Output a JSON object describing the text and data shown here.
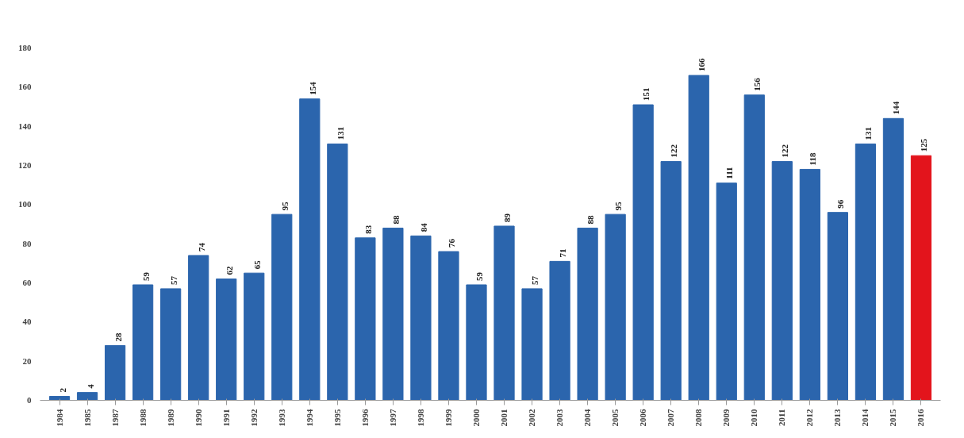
{
  "chart_data": {
    "type": "bar",
    "categories": [
      "1984",
      "1985",
      "1987",
      "1988",
      "1989",
      "1990",
      "1991",
      "1992",
      "1993",
      "1994",
      "1995",
      "1996",
      "1997",
      "1998",
      "1999",
      "2000",
      "2001",
      "2002",
      "2003",
      "2004",
      "2005",
      "2006",
      "2007",
      "2008",
      "2009",
      "2010",
      "2011",
      "2012",
      "2013",
      "2014",
      "2015",
      "2016"
    ],
    "values": [
      2,
      4,
      28,
      59,
      57,
      74,
      62,
      65,
      95,
      154,
      131,
      83,
      88,
      84,
      76,
      59,
      89,
      57,
      71,
      88,
      95,
      151,
      122,
      166,
      111,
      156,
      122,
      118,
      96,
      131,
      144,
      125
    ],
    "colors": [
      "#2b65ad",
      "#2b65ad",
      "#2b65ad",
      "#2b65ad",
      "#2b65ad",
      "#2b65ad",
      "#2b65ad",
      "#2b65ad",
      "#2b65ad",
      "#2b65ad",
      "#2b65ad",
      "#2b65ad",
      "#2b65ad",
      "#2b65ad",
      "#2b65ad",
      "#2b65ad",
      "#2b65ad",
      "#2b65ad",
      "#2b65ad",
      "#2b65ad",
      "#2b65ad",
      "#2b65ad",
      "#2b65ad",
      "#2b65ad",
      "#2b65ad",
      "#2b65ad",
      "#2b65ad",
      "#2b65ad",
      "#2b65ad",
      "#2b65ad",
      "#2b65ad",
      "#e3141c"
    ],
    "ylim": [
      0,
      180
    ],
    "yticks": [
      0,
      20,
      40,
      60,
      80,
      100,
      120,
      140,
      160,
      180
    ],
    "data_labels": true,
    "grid": false
  }
}
